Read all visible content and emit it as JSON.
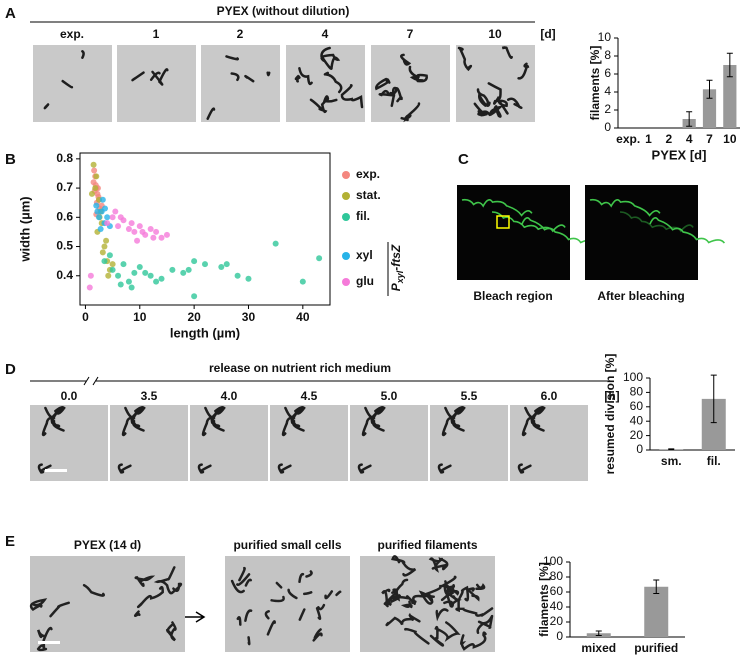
{
  "panels": {
    "A": {
      "letter": "A",
      "title": "PYEX (without dilution)",
      "labels": [
        "exp.",
        "1",
        "2",
        "4",
        "7",
        "10"
      ],
      "unit": "[d]"
    },
    "B": {
      "letter": "B",
      "construct": {
        "main": "P",
        "sub": "xyl",
        "rest": "-ftsZ"
      }
    },
    "C": {
      "letter": "C",
      "labels": [
        "Bleach region",
        "After bleaching"
      ]
    },
    "D": {
      "letter": "D",
      "title": "release on nutrient rich medium",
      "labels": [
        "0.0",
        "3.5",
        "4.0",
        "4.5",
        "5.0",
        "5.5",
        "6.0"
      ],
      "unit": "[h]"
    },
    "E": {
      "letter": "E",
      "labels": [
        "PYEX (14 d)",
        "purified small cells",
        "purified filaments"
      ]
    }
  },
  "chart_data": [
    {
      "type": "bar",
      "ylabel": "filaments [%]",
      "xlabel": "PYEX [d]",
      "categories": [
        "exp.",
        "1",
        "2",
        "4",
        "7",
        "10"
      ],
      "values": [
        0,
        0,
        0,
        1,
        4.3,
        7
      ],
      "errors": [
        0,
        0,
        0,
        0.8,
        1,
        1.3
      ],
      "color": "#999999",
      "ylim": [
        0,
        10
      ],
      "yticks": [
        0,
        2,
        4,
        6,
        8,
        10
      ]
    },
    {
      "type": "scatter",
      "xlabel": "length (µm)",
      "ylabel": "width (µm)",
      "xlim": [
        -1,
        45
      ],
      "xticks": [
        0,
        10,
        20,
        30,
        40
      ],
      "ylim": [
        0.3,
        0.82
      ],
      "yticks": [
        0.4,
        0.5,
        0.6,
        0.7,
        0.8
      ],
      "series": [
        {
          "name": "exp.",
          "color": "#f4877f",
          "x": [
            1.5,
            2,
            2.2,
            1.8,
            2.5,
            3,
            1.7,
            2.1,
            2.8,
            1.9,
            2.4,
            2.6,
            1.6,
            2.0,
            2.3
          ],
          "values": [
            0.72,
            0.7,
            0.68,
            0.74,
            0.66,
            0.64,
            0.69,
            0.65,
            0.62,
            0.71,
            0.67,
            0.63,
            0.76,
            0.61,
            0.7
          ]
        },
        {
          "name": "stat.",
          "color": "#b3b134",
          "x": [
            1.5,
            2,
            2.5,
            3,
            3.5,
            4,
            4.5,
            2.2,
            3.2,
            2.8,
            1.8,
            3.8,
            5,
            1.2,
            2.6,
            4.2
          ],
          "values": [
            0.78,
            0.74,
            0.66,
            0.58,
            0.5,
            0.45,
            0.42,
            0.55,
            0.48,
            0.62,
            0.7,
            0.52,
            0.44,
            0.68,
            0.6,
            0.4
          ]
        },
        {
          "name": "fil.",
          "color": "#2fc79a",
          "x": [
            5,
            6,
            7,
            8,
            9,
            10,
            12,
            14,
            16,
            18,
            20,
            22,
            25,
            28,
            30,
            35,
            40,
            43,
            6.5,
            8.5,
            11,
            13,
            3.5,
            4.5,
            20,
            19,
            26
          ],
          "values": [
            0.42,
            0.4,
            0.44,
            0.38,
            0.41,
            0.43,
            0.4,
            0.39,
            0.42,
            0.41,
            0.45,
            0.44,
            0.43,
            0.4,
            0.39,
            0.51,
            0.38,
            0.46,
            0.37,
            0.36,
            0.41,
            0.38,
            0.45,
            0.47,
            0.33,
            0.42,
            0.44
          ]
        },
        {
          "name": "xyl",
          "color": "#27b3e8",
          "x": [
            2,
            2.5,
            3,
            3.5,
            2.8,
            3.2,
            4,
            2.2,
            3.6,
            4.5
          ],
          "values": [
            0.64,
            0.6,
            0.62,
            0.58,
            0.56,
            0.66,
            0.6,
            0.62,
            0.63,
            0.57
          ]
        },
        {
          "name": "glu",
          "color": "#f57ad9",
          "x": [
            4,
            5,
            6,
            7,
            8,
            9,
            10,
            11,
            12,
            13,
            14,
            15,
            6.5,
            8.5,
            10.5,
            12.5,
            5.5,
            9.5,
            1,
            0.8
          ],
          "values": [
            0.58,
            0.6,
            0.57,
            0.59,
            0.56,
            0.55,
            0.57,
            0.54,
            0.56,
            0.55,
            0.53,
            0.54,
            0.6,
            0.58,
            0.55,
            0.53,
            0.62,
            0.52,
            0.4,
            0.36
          ]
        }
      ]
    },
    {
      "type": "bar",
      "ylabel": "resumed division [%]",
      "categories": [
        "sm.",
        "fil."
      ],
      "values": [
        1,
        71
      ],
      "errors": [
        0.5,
        33
      ],
      "color": "#999999",
      "ylim": [
        0,
        100
      ],
      "yticks": [
        0,
        20,
        40,
        60,
        80,
        100
      ]
    },
    {
      "type": "bar",
      "ylabel": "filaments [%]",
      "categories": [
        "mixed",
        "purified"
      ],
      "values": [
        5,
        67
      ],
      "errors": [
        3,
        9
      ],
      "color": "#999999",
      "ylim": [
        0,
        100
      ],
      "yticks": [
        0,
        20,
        40,
        60,
        80,
        100
      ]
    }
  ]
}
